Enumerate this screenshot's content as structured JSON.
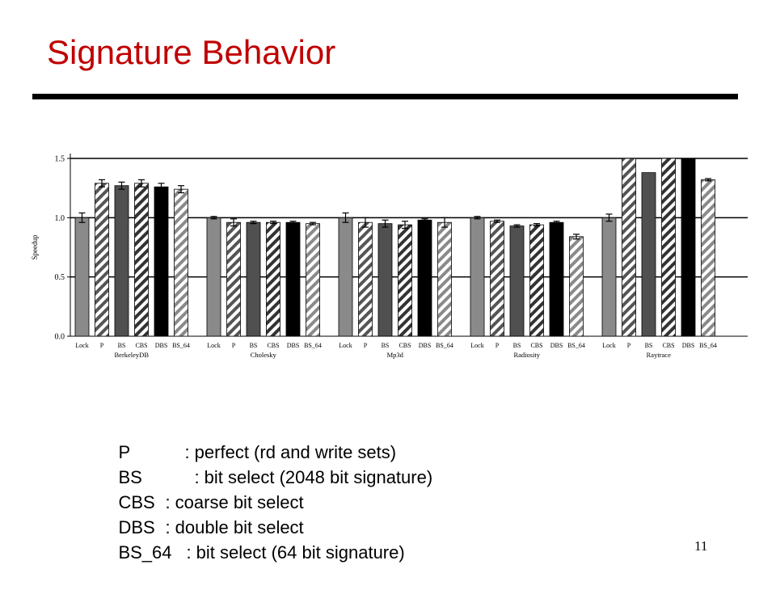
{
  "slide": {
    "title": "Signature Behavior",
    "title_color": "#c00000",
    "page_number": "11"
  },
  "legend": [
    {
      "key": "P",
      "desc": ": perfect (rd and write sets)"
    },
    {
      "key": "BS",
      "desc": ": bit select (2048 bit signature)"
    },
    {
      "key": "CBS",
      "desc": ": coarse bit select"
    },
    {
      "key": "DBS",
      "desc": ": double bit select"
    },
    {
      "key": "BS_64",
      "desc": ": bit select (64 bit signature)"
    }
  ],
  "chart_data": {
    "type": "bar",
    "ylabel": "Speedup",
    "ylim": [
      0,
      1.5
    ],
    "yticks": [
      "0.0",
      "0.5",
      "1.0",
      "1.5"
    ],
    "grid": true,
    "bar_labels": [
      "Lock",
      "P",
      "BS",
      "CBS",
      "DBS",
      "BS_64"
    ],
    "bar_styles": [
      {
        "fill": "#8a8a8a",
        "pattern": "solid"
      },
      {
        "fill": "#ffffff",
        "pattern": "hatch",
        "stripe": "#555555"
      },
      {
        "fill": "#505050",
        "pattern": "solid"
      },
      {
        "fill": "#ffffff",
        "pattern": "hatch",
        "stripe": "#333333"
      },
      {
        "fill": "#000000",
        "pattern": "solid"
      },
      {
        "fill": "#ffffff",
        "pattern": "hatch",
        "stripe": "#8a8a8a"
      }
    ],
    "groups": [
      {
        "name": "BerkeleyDB",
        "values": [
          1.0,
          1.29,
          1.27,
          1.29,
          1.26,
          1.24
        ],
        "errors": [
          0.04,
          0.03,
          0.03,
          0.03,
          0.03,
          0.03
        ]
      },
      {
        "name": "Cholesky",
        "values": [
          1.0,
          0.96,
          0.96,
          0.96,
          0.96,
          0.95
        ],
        "errors": [
          0.01,
          0.03,
          0.01,
          0.01,
          0.01,
          0.01
        ]
      },
      {
        "name": "Mp3d",
        "values": [
          1.0,
          0.96,
          0.95,
          0.94,
          0.98,
          0.96
        ],
        "errors": [
          0.04,
          0.04,
          0.03,
          0.03,
          0.01,
          0.04
        ]
      },
      {
        "name": "Radiosity",
        "values": [
          1.0,
          0.97,
          0.93,
          0.94,
          0.96,
          0.84
        ],
        "errors": [
          0.01,
          0.01,
          0.01,
          0.01,
          0.01,
          0.02
        ]
      },
      {
        "name": "Raytrace",
        "values": [
          1.0,
          1.5,
          1.38,
          1.5,
          1.5,
          1.32
        ],
        "errors": [
          0.03,
          0.0,
          0.0,
          0.0,
          0.0,
          0.01
        ]
      }
    ]
  }
}
